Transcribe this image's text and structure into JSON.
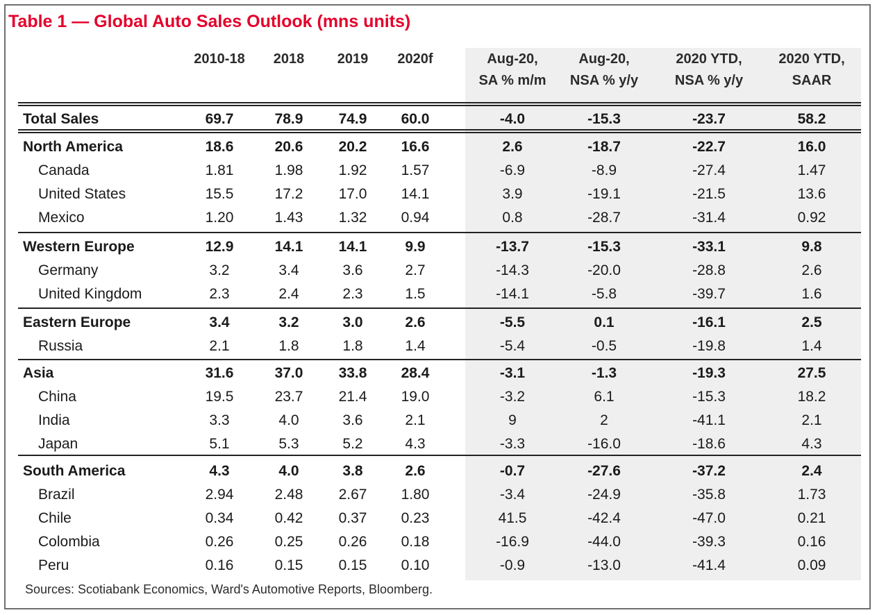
{
  "title": "Table 1 — Global Auto Sales Outlook (mns units)",
  "headers": [
    [
      "2010-18"
    ],
    [
      "2018"
    ],
    [
      "2019"
    ],
    [
      "2020f"
    ],
    [
      "Aug-20,",
      "SA % m/m"
    ],
    [
      "Aug-20,",
      "NSA % y/y"
    ],
    [
      "2020 YTD,",
      "NSA % y/y"
    ],
    [
      "2020 YTD,",
      "SAAR"
    ]
  ],
  "rows": [
    {
      "label": "Total Sales",
      "level": "total",
      "values": [
        "69.7",
        "78.9",
        "74.9",
        "60.0",
        "-4.0",
        "-15.3",
        "-23.7",
        "58.2"
      ]
    },
    {
      "label": "North America",
      "level": "region",
      "values": [
        "18.6",
        "20.6",
        "20.2",
        "16.6",
        "2.6",
        "-18.7",
        "-22.7",
        "16.0"
      ]
    },
    {
      "label": "Canada",
      "level": "country",
      "values": [
        "1.81",
        "1.98",
        "1.92",
        "1.57",
        "-6.9",
        "-8.9",
        "-27.4",
        "1.47"
      ]
    },
    {
      "label": "United States",
      "level": "country",
      "values": [
        "15.5",
        "17.2",
        "17.0",
        "14.1",
        "3.9",
        "-19.1",
        "-21.5",
        "13.6"
      ]
    },
    {
      "label": "Mexico",
      "level": "country",
      "values": [
        "1.20",
        "1.43",
        "1.32",
        "0.94",
        "0.8",
        "-28.7",
        "-31.4",
        "0.92"
      ]
    },
    {
      "label": "Western Europe",
      "level": "region",
      "values": [
        "12.9",
        "14.1",
        "14.1",
        "9.9",
        "-13.7",
        "-15.3",
        "-33.1",
        "9.8"
      ]
    },
    {
      "label": "Germany",
      "level": "country",
      "values": [
        "3.2",
        "3.4",
        "3.6",
        "2.7",
        "-14.3",
        "-20.0",
        "-28.8",
        "2.6"
      ]
    },
    {
      "label": "United Kingdom",
      "level": "country",
      "values": [
        "2.3",
        "2.4",
        "2.3",
        "1.5",
        "-14.1",
        "-5.8",
        "-39.7",
        "1.6"
      ]
    },
    {
      "label": "Eastern Europe",
      "level": "region",
      "values": [
        "3.4",
        "3.2",
        "3.0",
        "2.6",
        "-5.5",
        "0.1",
        "-16.1",
        "2.5"
      ]
    },
    {
      "label": "Russia",
      "level": "country",
      "values": [
        "2.1",
        "1.8",
        "1.8",
        "1.4",
        "-5.4",
        "-0.5",
        "-19.8",
        "1.4"
      ]
    },
    {
      "label": "Asia",
      "level": "region",
      "values": [
        "31.6",
        "37.0",
        "33.8",
        "28.4",
        "-3.1",
        "-1.3",
        "-19.3",
        "27.5"
      ]
    },
    {
      "label": "China",
      "level": "country",
      "values": [
        "19.5",
        "23.7",
        "21.4",
        "19.0",
        "-3.2",
        "6.1",
        "-15.3",
        "18.2"
      ]
    },
    {
      "label": "India",
      "level": "country",
      "values": [
        "3.3",
        "4.0",
        "3.6",
        "2.1",
        "9",
        "2",
        "-41.1",
        "2.1"
      ]
    },
    {
      "label": "Japan",
      "level": "country",
      "values": [
        "5.1",
        "5.3",
        "5.2",
        "4.3",
        "-3.3",
        "-16.0",
        "-18.6",
        "4.3"
      ]
    },
    {
      "label": "South America",
      "level": "region",
      "values": [
        "4.3",
        "4.0",
        "3.8",
        "2.6",
        "-0.7",
        "-27.6",
        "-37.2",
        "2.4"
      ]
    },
    {
      "label": "Brazil",
      "level": "country",
      "values": [
        "2.94",
        "2.48",
        "2.67",
        "1.80",
        "-3.4",
        "-24.9",
        "-35.8",
        "1.73"
      ]
    },
    {
      "label": "Chile",
      "level": "country",
      "values": [
        "0.34",
        "0.42",
        "0.37",
        "0.23",
        "41.5",
        "-42.4",
        "-47.0",
        "0.21"
      ]
    },
    {
      "label": "Colombia",
      "level": "country",
      "values": [
        "0.26",
        "0.25",
        "0.26",
        "0.18",
        "-16.9",
        "-44.0",
        "-39.3",
        "0.16"
      ]
    },
    {
      "label": "Peru",
      "level": "country",
      "values": [
        "0.16",
        "0.15",
        "0.15",
        "0.10",
        "-0.9",
        "-13.0",
        "-41.4",
        "0.09"
      ]
    }
  ],
  "source": "Sources: Scotiabank Economics, Ward's Automotive Reports, Bloomberg.",
  "colors": {
    "title": "#e4002b",
    "frame": "#6e6e6e",
    "shade": "#efefef",
    "rule": "#222222"
  }
}
